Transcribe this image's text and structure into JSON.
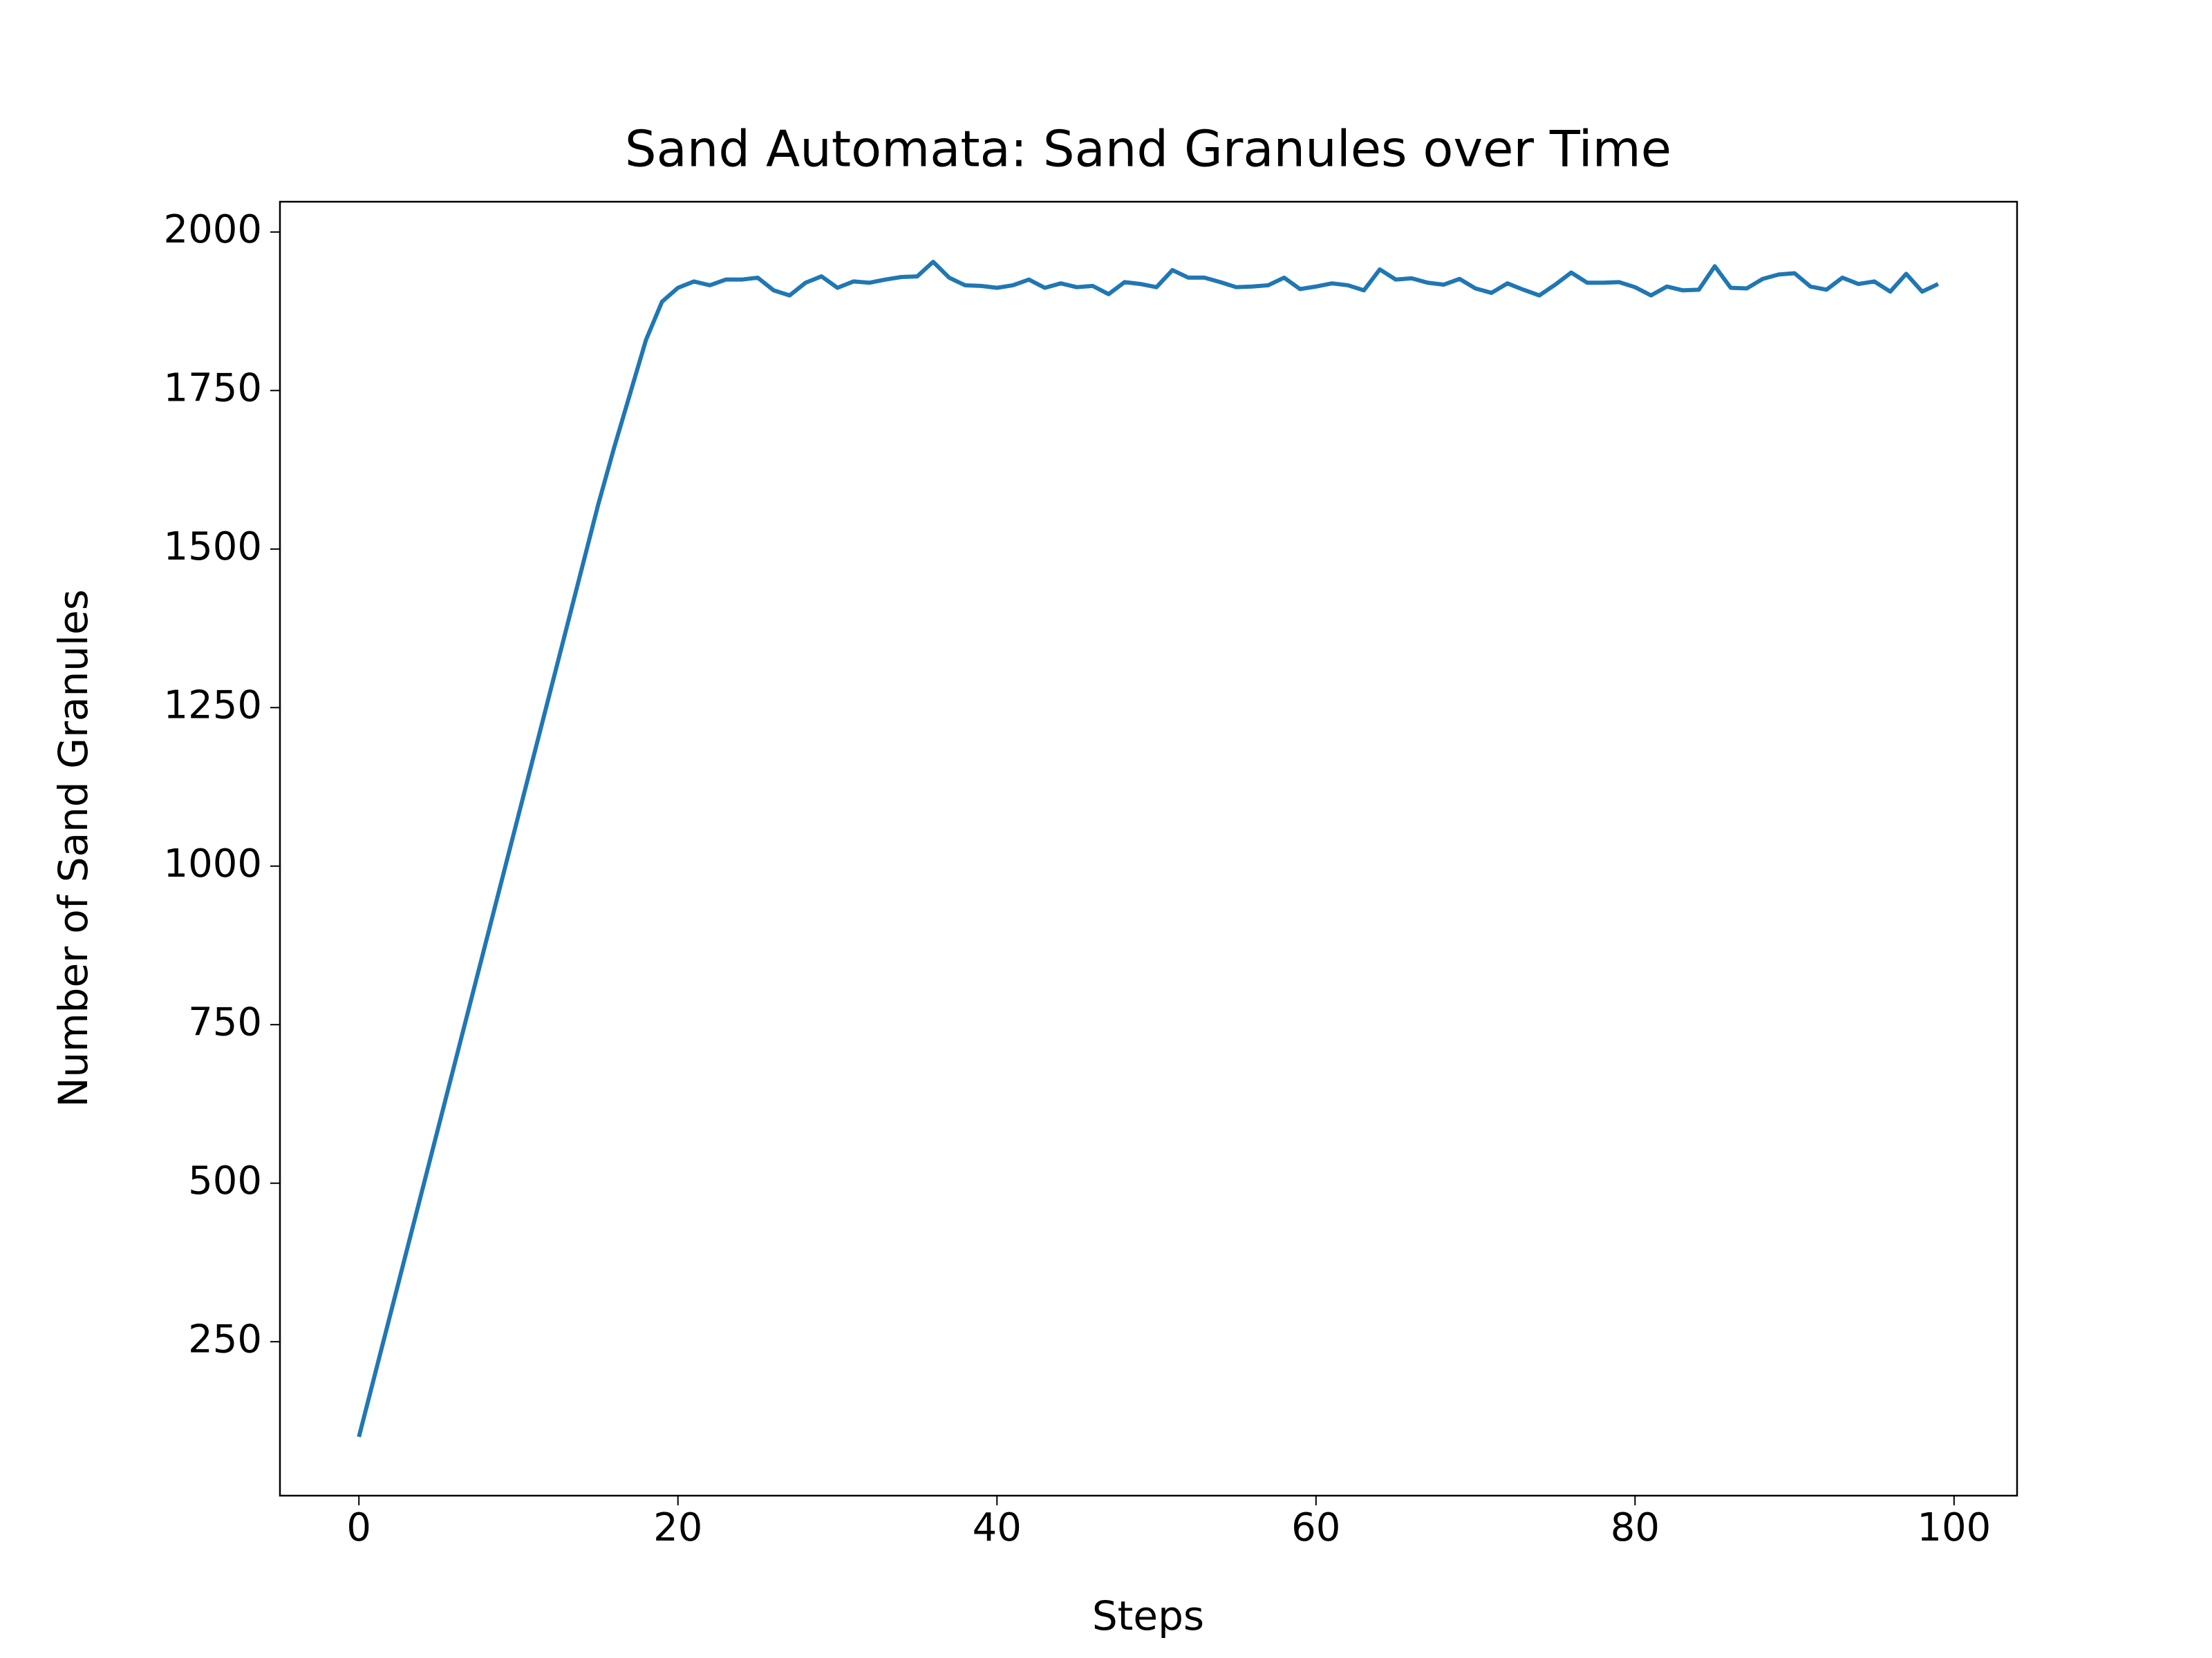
{
  "chart_data": {
    "type": "line",
    "title": "Sand Automata: Sand Granules over Time",
    "x_label": "Steps",
    "y_label": "Number of Sand Granules",
    "color": "#1f77b4",
    "x": [
      0,
      1,
      2,
      3,
      4,
      5,
      6,
      7,
      8,
      9,
      10,
      11,
      12,
      13,
      14,
      15,
      16,
      17,
      18,
      19,
      20,
      21,
      22,
      23,
      24,
      25,
      26,
      27,
      28,
      29,
      30,
      31,
      32,
      33,
      34,
      35,
      36,
      37,
      38,
      39,
      40,
      41,
      42,
      43,
      44,
      45,
      46,
      47,
      48,
      49,
      50,
      51,
      52,
      53,
      54,
      55,
      56,
      57,
      58,
      59,
      60,
      61,
      62,
      63,
      64,
      65,
      66,
      67,
      68,
      69,
      70,
      71,
      72,
      73,
      74,
      75,
      76,
      77,
      78,
      79,
      80,
      81,
      82,
      83,
      84,
      85,
      86,
      87,
      88,
      89,
      90,
      91,
      92,
      93,
      94,
      95,
      96,
      97,
      98,
      99
    ],
    "values": [
      100,
      198,
      296,
      394,
      492,
      590,
      688,
      786,
      884,
      982,
      1080,
      1178,
      1276,
      1374,
      1472,
      1570,
      1660,
      1745,
      1830,
      1890,
      1912,
      1922,
      1916,
      1925,
      1925,
      1928,
      1908,
      1900,
      1920,
      1930,
      1912,
      1922,
      1920,
      1925,
      1929,
      1930,
      1953,
      1928,
      1916,
      1915,
      1912,
      1916,
      1925,
      1912,
      1919,
      1913,
      1915,
      1902,
      1921,
      1918,
      1913,
      1940,
      1928,
      1928,
      1921,
      1913,
      1914,
      1916,
      1928,
      1910,
      1914,
      1919,
      1916,
      1908,
      1941,
      1925,
      1927,
      1920,
      1917,
      1926,
      1911,
      1904,
      1919,
      1909,
      1900,
      1917,
      1936,
      1920,
      1920,
      1921,
      1913,
      1900,
      1914,
      1908,
      1909,
      1946,
      1912,
      1911,
      1926,
      1933,
      1935,
      1914,
      1909,
      1928,
      1918,
      1922,
      1906,
      1934,
      1906,
      1918
    ],
    "xlim": [
      -4.95,
      103.95
    ],
    "xticks": [
      0,
      20,
      40,
      60,
      80,
      100
    ],
    "ylim": [
      7.25,
      2047.75
    ],
    "yticks": [
      250,
      500,
      750,
      1000,
      1250,
      1500,
      1750,
      2000
    ]
  }
}
